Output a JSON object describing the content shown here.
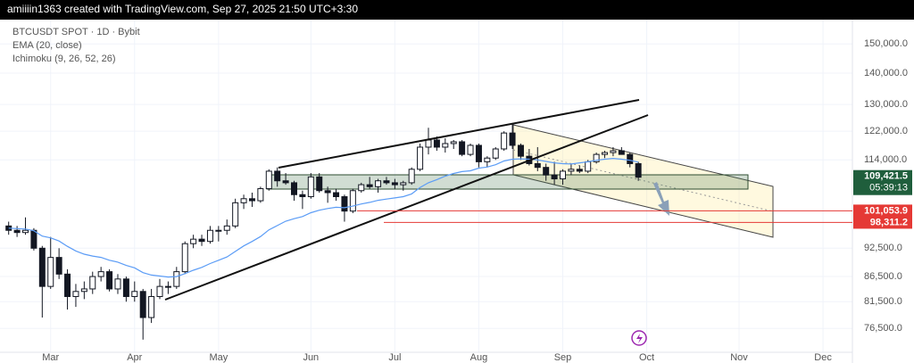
{
  "header": "amiiiin1363 created with TradingView.com, Sep 27, 2025 21:50 UTC+3:30",
  "chart_data": {
    "type": "candlestick",
    "title": "BTCUSDT SPOT · 1D · Bybit",
    "indicator": "Ichimoku (9, 26, 52, 26)",
    "categories": [
      null,
      null,
      null,
      null,
      null,
      "Mar",
      null,
      null,
      null,
      null,
      null,
      null,
      null,
      null,
      null,
      "Apr",
      null,
      null,
      null,
      null,
      null,
      null,
      null,
      null,
      null,
      "May",
      null,
      null,
      null,
      null,
      null,
      null,
      null,
      null,
      null,
      null,
      "Jun",
      null,
      null,
      null,
      null,
      null,
      null,
      null,
      null,
      null,
      "Jul",
      null,
      null,
      null,
      null,
      null,
      null,
      null,
      null,
      null,
      "Aug",
      null,
      null,
      null,
      null,
      null,
      null,
      null,
      null,
      null,
      "Sep",
      null,
      null,
      null,
      null,
      null,
      null,
      null,
      null,
      null,
      "Oct",
      null,
      null,
      null,
      null,
      null,
      null,
      null,
      null,
      null,
      null,
      "Nov",
      null,
      null,
      null,
      null,
      null,
      null,
      null,
      null,
      null,
      "Dec",
      null,
      null,
      null
    ],
    "open": [
      97500,
      96500,
      96000,
      96500,
      92500,
      84500,
      90500,
      87000,
      82500,
      83500,
      84000,
      86500,
      87500,
      84000,
      86000,
      82500,
      83500,
      78500,
      82500,
      84500,
      84500,
      87500,
      93500,
      94500,
      94000,
      96500,
      96500,
      97500,
      103000,
      104000,
      103500,
      106500,
      111000,
      108500,
      108000,
      105000,
      104500,
      109500,
      106000,
      105500,
      104500,
      101000,
      106000,
      107500,
      107000,
      108500,
      108000,
      107500,
      108000,
      111500,
      117500,
      119500,
      117500,
      118500,
      119000,
      115500,
      118000,
      113500,
      114500,
      117000,
      121500,
      118000,
      115000,
      113000,
      112000,
      110000,
      109000,
      111000,
      111500,
      111000,
      113500,
      115500,
      116000,
      116500,
      115500,
      113000,
      null,
      null,
      null,
      null,
      null,
      null,
      null,
      null,
      null,
      null,
      null,
      null,
      null,
      null,
      null,
      null,
      null,
      null,
      null,
      null,
      null,
      null,
      null,
      null,
      null
    ],
    "high": [
      98500,
      97500,
      99500,
      97000,
      93000,
      95000,
      92500,
      88000,
      85000,
      85500,
      87500,
      88500,
      88000,
      87000,
      86500,
      85500,
      84000,
      84000,
      86000,
      85500,
      88500,
      94000,
      95500,
      95500,
      97500,
      97500,
      99000,
      104000,
      105000,
      105500,
      107000,
      111500,
      112000,
      110500,
      108500,
      106000,
      110500,
      110500,
      107000,
      106500,
      105000,
      106500,
      108000,
      109500,
      109000,
      109500,
      109000,
      108500,
      112000,
      118500,
      123000,
      120500,
      120000,
      119500,
      119500,
      118500,
      118500,
      115000,
      117500,
      122000,
      124400,
      118500,
      117000,
      117500,
      113000,
      113500,
      111500,
      113000,
      112500,
      114000,
      116000,
      116500,
      117500,
      117500,
      116000,
      113500,
      null,
      null,
      null,
      null,
      null,
      null,
      null,
      null,
      null,
      null,
      null,
      null,
      null,
      null,
      null,
      null,
      null,
      null,
      null,
      null,
      null,
      null,
      null,
      null,
      null
    ],
    "low": [
      95500,
      95000,
      95500,
      92000,
      78500,
      84000,
      86000,
      80000,
      80500,
      82000,
      83000,
      85500,
      83500,
      83000,
      81500,
      81500,
      74500,
      77500,
      82000,
      83000,
      84000,
      87000,
      92500,
      93000,
      93500,
      94000,
      95500,
      97000,
      101500,
      102000,
      103000,
      106000,
      107000,
      107500,
      103500,
      101500,
      104000,
      105500,
      103000,
      103500,
      98500,
      100500,
      105500,
      106500,
      105500,
      107500,
      106500,
      106000,
      107500,
      111000,
      115500,
      116500,
      116000,
      117000,
      115000,
      115000,
      112000,
      112000,
      114000,
      116500,
      117000,
      114000,
      112500,
      111000,
      108500,
      107500,
      107500,
      110000,
      110500,
      110500,
      113000,
      114500,
      115000,
      115500,
      112000,
      108500,
      null,
      null,
      null,
      null,
      null,
      null,
      null,
      null,
      null,
      null,
      null,
      null,
      null,
      null,
      null,
      null,
      null,
      null,
      null,
      null,
      null,
      null,
      null,
      null,
      null
    ],
    "close": [
      96500,
      96000,
      96500,
      92500,
      84500,
      90500,
      87000,
      82500,
      83500,
      84000,
      86500,
      87500,
      84000,
      86000,
      82500,
      83500,
      78500,
      82500,
      84500,
      84500,
      87500,
      93500,
      94500,
      94000,
      96500,
      96500,
      97500,
      103000,
      104000,
      103500,
      106500,
      111000,
      108500,
      108000,
      105000,
      104500,
      109500,
      106000,
      105500,
      104500,
      101000,
      106000,
      107500,
      107000,
      108500,
      108000,
      107500,
      108000,
      111500,
      117500,
      119500,
      117500,
      118500,
      119000,
      115500,
      118000,
      113500,
      114500,
      117000,
      121500,
      118000,
      115000,
      113000,
      112000,
      110000,
      109000,
      111000,
      111500,
      111000,
      113500,
      115500,
      116000,
      116500,
      115500,
      113000,
      109421.5,
      null,
      null,
      null,
      null,
      null,
      null,
      null,
      null,
      null,
      null,
      null,
      null,
      null,
      null,
      null,
      null,
      null,
      null,
      null,
      null,
      null,
      null,
      null,
      null,
      null
    ],
    "up_color": "#ffffff",
    "down_color": "#131722",
    "series": [
      {
        "name": "EMA (20, close)",
        "color": "#5b9cf6",
        "values": [
          97000,
          96900,
          96800,
          96400,
          95200,
          94800,
          94100,
          92900,
          91900,
          91200,
          90800,
          90500,
          89900,
          89500,
          88800,
          88300,
          87300,
          86800,
          86600,
          86400,
          86500,
          87100,
          87800,
          88400,
          89200,
          89900,
          90600,
          91800,
          93000,
          94000,
          95100,
          96600,
          97600,
          98600,
          99200,
          99700,
          100600,
          101200,
          101600,
          101900,
          101800,
          102200,
          102700,
          103100,
          103600,
          103900,
          104200,
          104500,
          105200,
          106800,
          108000,
          108800,
          109700,
          110400,
          110900,
          111100,
          111800,
          112100,
          112700,
          113700,
          114200,
          114300,
          114200,
          114000,
          113600,
          113200,
          113000,
          112900,
          113200,
          113500,
          113900,
          114200,
          114400,
          114200,
          113900,
          113400,
          null,
          null,
          null,
          null,
          null,
          null,
          null,
          null,
          null,
          null,
          null,
          null,
          null,
          null,
          null,
          null,
          null,
          null,
          null,
          null,
          null,
          null,
          null,
          null,
          null
        ]
      }
    ],
    "ylim": [
      72300,
      158900
    ],
    "log_scale": true,
    "grid": true,
    "yticks": [
      {
        "value": 76500,
        "label": "76,500.0"
      },
      {
        "value": 81500,
        "label": "81,500.0"
      },
      {
        "value": 86500,
        "label": "86,500.0"
      },
      {
        "value": 92500,
        "label": "92,500.0"
      },
      {
        "value": 114000,
        "label": "114,000.0"
      },
      {
        "value": 122000,
        "label": "122,000.0"
      },
      {
        "value": 130000,
        "label": "130,000.0"
      },
      {
        "value": 140000,
        "label": "140,000.0"
      },
      {
        "value": 150000,
        "label": "150,000.0"
      }
    ],
    "last_price": {
      "value": 109421.5,
      "label": "109,421.5",
      "color": "#1f5e3c"
    },
    "countdown": "05:39:13",
    "levels": [
      {
        "value": 101053.9,
        "label": "101,053.9",
        "color": "#e53935"
      },
      {
        "value": 98311.2,
        "label": "98,311.2",
        "color": "#e53935"
      }
    ]
  }
}
